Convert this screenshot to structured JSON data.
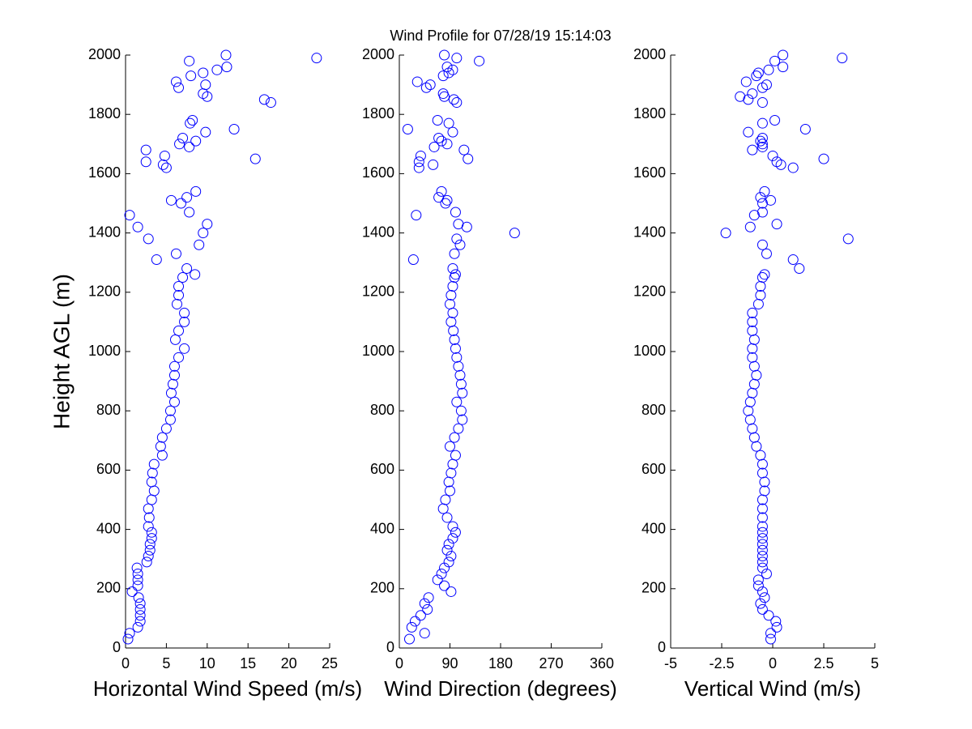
{
  "chart_data": [
    {
      "type": "scatter",
      "xlabel": "Horizontal Wind Speed (m/s)",
      "ylabel": "Height AGL (m)",
      "color": "#0000ff",
      "xlim": [
        0,
        25
      ],
      "xticks": [
        0,
        5,
        10,
        15,
        20,
        25
      ],
      "ylim": [
        0,
        2000
      ],
      "yticks": [
        0,
        200,
        400,
        600,
        800,
        1000,
        1200,
        1400,
        1600,
        1800,
        2000
      ],
      "x": [
        0.3,
        0.5,
        1.5,
        1.8,
        1.8,
        1.8,
        1.8,
        1.6,
        0.8,
        1.5,
        1.5,
        1.5,
        1.4,
        2.6,
        2.8,
        3.0,
        3.0,
        3.2,
        3.2,
        2.8,
        2.9,
        2.8,
        3.2,
        3.5,
        3.2,
        3.3,
        3.5,
        4.5,
        4.3,
        4.5,
        5.0,
        5.5,
        5.5,
        6.0,
        5.6,
        5.8,
        6.0,
        6.0,
        6.5,
        7.2,
        6.1,
        6.5,
        7.2,
        7.2,
        6.3,
        6.5,
        6.5,
        7.0,
        8.5,
        7.5,
        3.8,
        6.2,
        9.0,
        2.8,
        9.5,
        1.5,
        10.0,
        0.5,
        7.8,
        6.8,
        5.6,
        7.5,
        8.6,
        5.0,
        4.6,
        2.5,
        15.9,
        4.8,
        2.5,
        7.8,
        6.6,
        8.6,
        7.0,
        9.8,
        13.3,
        7.9,
        8.2,
        17.8,
        17.0,
        10.0,
        9.5,
        6.5,
        9.8,
        6.2,
        8.0,
        9.5,
        11.2,
        12.4,
        7.8,
        23.4,
        12.3
      ],
      "y": [
        30,
        50,
        70,
        90,
        110,
        130,
        150,
        170,
        190,
        210,
        230,
        250,
        270,
        290,
        310,
        330,
        350,
        370,
        390,
        410,
        440,
        470,
        500,
        530,
        560,
        590,
        620,
        650,
        680,
        710,
        740,
        770,
        800,
        830,
        860,
        890,
        920,
        950,
        980,
        1010,
        1040,
        1070,
        1100,
        1130,
        1160,
        1190,
        1220,
        1250,
        1260,
        1280,
        1310,
        1330,
        1360,
        1380,
        1400,
        1420,
        1430,
        1460,
        1470,
        1500,
        1510,
        1520,
        1540,
        1620,
        1630,
        1640,
        1650,
        1660,
        1680,
        1690,
        1700,
        1710,
        1720,
        1740,
        1750,
        1770,
        1780,
        1840,
        1850,
        1860,
        1870,
        1890,
        1900,
        1910,
        1930,
        1940,
        1950,
        1960,
        1980,
        1990,
        2000
      ]
    },
    {
      "type": "scatter",
      "title": "Wind Profile for  07/28/19 15:14:03",
      "xlabel": "Wind Direction (degrees)",
      "color": "#0000ff",
      "xlim": [
        0,
        360
      ],
      "xticks": [
        0,
        90,
        180,
        270,
        360
      ],
      "ylim": [
        0,
        2000
      ],
      "yticks": [
        0,
        200,
        400,
        600,
        800,
        1000,
        1200,
        1400,
        1600,
        1800,
        2000
      ],
      "x": [
        18,
        45,
        22,
        28,
        38,
        50,
        45,
        52,
        92,
        80,
        68,
        75,
        80,
        88,
        92,
        85,
        88,
        95,
        100,
        95,
        85,
        78,
        82,
        90,
        88,
        92,
        95,
        100,
        90,
        98,
        105,
        112,
        110,
        102,
        112,
        110,
        108,
        105,
        102,
        100,
        98,
        96,
        92,
        95,
        90,
        92,
        95,
        98,
        100,
        95,
        25,
        98,
        108,
        102,
        205,
        120,
        105,
        30,
        100,
        82,
        85,
        70,
        75,
        35,
        60,
        35,
        122,
        38,
        115,
        62,
        85,
        75,
        70,
        95,
        15,
        88,
        68,
        102,
        97,
        80,
        78,
        48,
        55,
        32,
        78,
        88,
        95,
        85,
        142,
        102,
        80
      ],
      "y": [
        30,
        50,
        70,
        90,
        110,
        130,
        150,
        170,
        190,
        210,
        230,
        250,
        270,
        290,
        310,
        330,
        350,
        370,
        390,
        410,
        440,
        470,
        500,
        530,
        560,
        590,
        620,
        650,
        680,
        710,
        740,
        770,
        800,
        830,
        860,
        890,
        920,
        950,
        980,
        1010,
        1040,
        1070,
        1100,
        1130,
        1160,
        1190,
        1220,
        1250,
        1260,
        1280,
        1310,
        1330,
        1360,
        1380,
        1400,
        1420,
        1430,
        1460,
        1470,
        1500,
        1510,
        1520,
        1540,
        1620,
        1630,
        1640,
        1650,
        1660,
        1680,
        1690,
        1700,
        1710,
        1720,
        1740,
        1750,
        1770,
        1780,
        1840,
        1850,
        1860,
        1870,
        1890,
        1900,
        1910,
        1930,
        1940,
        1950,
        1960,
        1980,
        1990,
        2000
      ]
    },
    {
      "type": "scatter",
      "xlabel": "Vertical Wind (m/s)",
      "color": "#0000ff",
      "xlim": [
        -5,
        5
      ],
      "xticks": [
        -5,
        -2.5,
        0,
        2.5,
        5
      ],
      "ylim": [
        0,
        2000
      ],
      "yticks": [
        0,
        200,
        400,
        600,
        800,
        1000,
        1200,
        1400,
        1600,
        1800,
        2000
      ],
      "x": [
        -0.1,
        -0.1,
        0.2,
        0.15,
        -0.2,
        -0.5,
        -0.6,
        -0.4,
        -0.5,
        -0.7,
        -0.7,
        -0.3,
        -0.5,
        -0.5,
        -0.5,
        -0.5,
        -0.5,
        -0.5,
        -0.5,
        -0.5,
        -0.5,
        -0.5,
        -0.5,
        -0.4,
        -0.4,
        -0.5,
        -0.5,
        -0.6,
        -0.8,
        -0.9,
        -1.0,
        -1.1,
        -1.2,
        -1.1,
        -1.0,
        -0.9,
        -0.8,
        -0.9,
        -1.0,
        -1.0,
        -0.9,
        -1.0,
        -1.0,
        -1.0,
        -0.7,
        -0.6,
        -0.6,
        -0.5,
        -0.4,
        1.3,
        1.0,
        -0.3,
        -0.5,
        3.7,
        -2.3,
        -1.1,
        0.2,
        -0.9,
        -0.5,
        -0.5,
        -0.1,
        -0.6,
        -0.4,
        1.0,
        0.4,
        0.2,
        2.5,
        0.0,
        -1.0,
        -0.5,
        -0.5,
        -0.6,
        -0.5,
        -1.2,
        1.6,
        -0.5,
        0.1,
        -0.5,
        -1.2,
        -1.6,
        -1.0,
        -0.5,
        -0.3,
        -1.3,
        -0.8,
        -0.7,
        -0.2,
        0.5,
        0.1,
        3.4,
        0.5
      ],
      "y": [
        30,
        50,
        70,
        90,
        110,
        130,
        150,
        170,
        190,
        210,
        230,
        250,
        270,
        290,
        310,
        330,
        350,
        370,
        390,
        410,
        440,
        470,
        500,
        530,
        560,
        590,
        620,
        650,
        680,
        710,
        740,
        770,
        800,
        830,
        860,
        890,
        920,
        950,
        980,
        1010,
        1040,
        1070,
        1100,
        1130,
        1160,
        1190,
        1220,
        1250,
        1260,
        1280,
        1310,
        1330,
        1360,
        1380,
        1400,
        1420,
        1430,
        1460,
        1470,
        1500,
        1510,
        1520,
        1540,
        1620,
        1630,
        1640,
        1650,
        1660,
        1680,
        1690,
        1700,
        1710,
        1720,
        1740,
        1750,
        1770,
        1780,
        1840,
        1850,
        1860,
        1870,
        1890,
        1900,
        1910,
        1930,
        1940,
        1950,
        1960,
        1980,
        1990,
        2000
      ]
    }
  ]
}
